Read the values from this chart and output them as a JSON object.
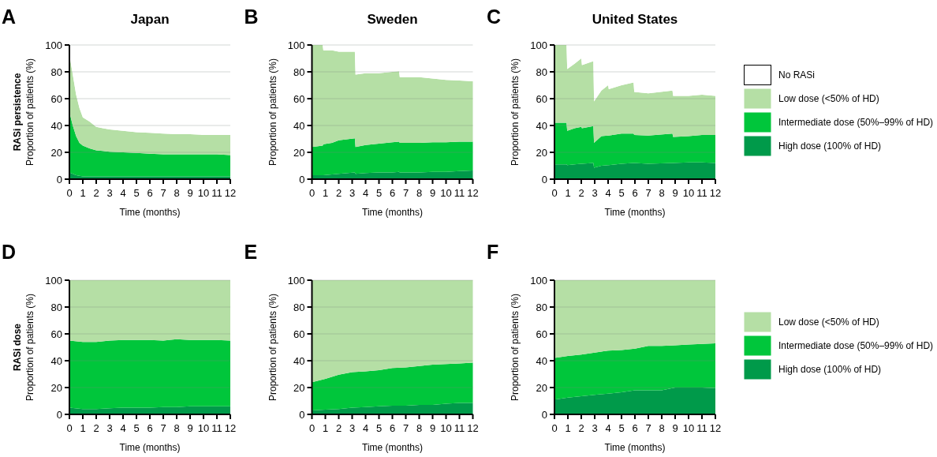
{
  "chart_data": [
    {
      "type": "area",
      "title": "Japan",
      "xlabel": "Time (months)",
      "ylabel": "Proportion of patients (%)",
      "annotations": [
        "A",
        "RASi persistence"
      ],
      "stacked": true,
      "grid": "y",
      "xlim": [
        0,
        12
      ],
      "ylim": [
        0,
        100
      ],
      "xticks": [
        0,
        1,
        2,
        3,
        4,
        5,
        6,
        7,
        8,
        9,
        10,
        11,
        12
      ],
      "yticks": [
        0,
        20,
        40,
        60,
        80,
        100
      ],
      "x": [
        0,
        0.25,
        0.5,
        0.75,
        1,
        1.5,
        2,
        2.5,
        3,
        4,
        5,
        6,
        7,
        8,
        9,
        10,
        11,
        12
      ],
      "series": [
        {
          "color": "#009a4a",
          "values": [
            5,
            4,
            3,
            2.5,
            2,
            2,
            2,
            2,
            2,
            2,
            2,
            2,
            2,
            2,
            2,
            2,
            2,
            2
          ]
        },
        {
          "color": "#00c63b",
          "values": [
            45,
            36,
            29,
            24.5,
            23,
            21,
            19.5,
            19,
            18.5,
            18,
            17.5,
            17,
            16.5,
            16.5,
            16.5,
            16.5,
            16.5,
            16
          ]
        },
        {
          "color": "#b5dfa5",
          "values": [
            43,
            38,
            31,
            26,
            21,
            20,
            17.5,
            17,
            16.5,
            16,
            15.5,
            15.5,
            15.5,
            15,
            15,
            14.5,
            14.5,
            15
          ]
        },
        {
          "color": "#ffffff",
          "values": [
            7,
            22,
            37,
            47,
            54,
            57,
            61,
            62,
            63,
            64,
            65,
            65.5,
            66,
            66.5,
            66.5,
            67,
            67,
            67
          ]
        }
      ]
    },
    {
      "type": "area",
      "title": "Sweden",
      "xlabel": "Time (months)",
      "ylabel": "Proportion of patients (%)",
      "annotations": [
        "B"
      ],
      "stacked": true,
      "grid": "y",
      "xlim": [
        0,
        12
      ],
      "ylim": [
        0,
        100
      ],
      "xticks": [
        0,
        1,
        2,
        3,
        4,
        5,
        6,
        7,
        8,
        9,
        10,
        11,
        12
      ],
      "yticks": [
        0,
        20,
        40,
        60,
        80,
        100
      ],
      "x": [
        0,
        0.8,
        0.85,
        1.5,
        2,
        3.2,
        3.25,
        4,
        5,
        6,
        6.5,
        6.55,
        8,
        9,
        10,
        11,
        12
      ],
      "series": [
        {
          "color": "#009a4a",
          "values": [
            3,
            3,
            3,
            3.5,
            4,
            5,
            4,
            4.5,
            5,
            5,
            5.5,
            5,
            5,
            5.5,
            5.5,
            6,
            6.5
          ]
        },
        {
          "color": "#00c63b",
          "values": [
            21,
            22,
            23,
            23.5,
            25,
            25.5,
            20,
            21,
            21.5,
            22.5,
            22.5,
            22,
            22,
            22,
            22,
            22,
            21.5
          ]
        },
        {
          "color": "#b5dfa5",
          "values": [
            76,
            75,
            70,
            69,
            66,
            64.5,
            54,
            53.5,
            52.5,
            52.5,
            52.5,
            49,
            49,
            47.5,
            46.5,
            45.5,
            45
          ]
        },
        {
          "color": "#ffffff",
          "values": [
            0,
            0,
            4,
            4,
            5,
            5,
            22,
            21,
            21,
            20,
            19.5,
            24,
            24,
            25,
            26,
            26.5,
            27
          ]
        }
      ]
    },
    {
      "type": "area",
      "title": "United States",
      "xlabel": "Time (months)",
      "ylabel": "Proportion of patients (%)",
      "annotations": [
        "C"
      ],
      "stacked": true,
      "grid": "y",
      "legend": "right",
      "xlim": [
        0,
        12
      ],
      "ylim": [
        0,
        100
      ],
      "xticks": [
        0,
        1,
        2,
        3,
        4,
        5,
        6,
        7,
        8,
        9,
        10,
        11,
        12
      ],
      "yticks": [
        0,
        20,
        40,
        60,
        80,
        100
      ],
      "x": [
        0,
        0.9,
        0.95,
        1.5,
        2,
        2.05,
        2.9,
        2.95,
        3.5,
        4,
        4.05,
        5,
        5.9,
        5.95,
        7,
        8.8,
        8.85,
        10,
        11,
        12
      ],
      "series": [
        {
          "name": "High dose (100% of HD)",
          "color": "#009a4a",
          "values": [
            11,
            11,
            10.5,
            11,
            11.5,
            11.5,
            12,
            8.5,
            10,
            10.5,
            10.5,
            11.5,
            12,
            12,
            11.5,
            12,
            12,
            12.5,
            12.5,
            12
          ]
        },
        {
          "name": "Intermediate dose (50%–99% of HD)",
          "color": "#00c63b",
          "values": [
            31,
            31,
            25.5,
            27,
            27.5,
            26.5,
            27.5,
            18.5,
            22,
            22,
            22,
            22.5,
            22,
            21,
            21,
            22,
            19.5,
            19.5,
            20.5,
            21
          ]
        },
        {
          "name": "Low dose (<50% of HD)",
          "color": "#b5dfa5",
          "values": [
            58,
            58,
            46,
            48,
            51,
            47,
            48.5,
            31,
            34,
            37.5,
            34.5,
            36,
            38,
            32,
            31.5,
            32,
            30.5,
            30,
            30,
            29
          ]
        },
        {
          "name": "No RASi",
          "color": "#ffffff",
          "values": [
            0,
            0,
            18,
            14,
            10,
            15,
            12,
            42,
            34,
            30,
            33,
            30,
            28,
            35,
            36,
            34,
            38,
            38,
            37,
            38
          ]
        }
      ]
    },
    {
      "type": "area",
      "xlabel": "Time (months)",
      "ylabel": "Proportion of patients (%)",
      "annotations": [
        "D",
        "RASi dose"
      ],
      "stacked": true,
      "grid": "y",
      "xlim": [
        0,
        12
      ],
      "ylim": [
        0,
        100
      ],
      "xticks": [
        0,
        1,
        2,
        3,
        4,
        5,
        6,
        7,
        8,
        9,
        10,
        11,
        12
      ],
      "yticks": [
        0,
        20,
        40,
        60,
        80,
        100
      ],
      "x": [
        0,
        1,
        2,
        3,
        4,
        5,
        6,
        7,
        8,
        9,
        10,
        11,
        12
      ],
      "series": [
        {
          "color": "#009a4a",
          "values": [
            5,
            4,
            4,
            4.5,
            5,
            5,
            5,
            5.5,
            5.5,
            6,
            6,
            6,
            6
          ]
        },
        {
          "color": "#00c63b",
          "values": [
            50,
            50,
            50,
            50.5,
            50.5,
            50.5,
            50.5,
            49.5,
            50.5,
            49.5,
            49.5,
            49.5,
            49
          ]
        },
        {
          "color": "#b5dfa5",
          "values": [
            45,
            46,
            46,
            45,
            44.5,
            44.5,
            44.5,
            45,
            44,
            44.5,
            44.5,
            44.5,
            45
          ]
        }
      ]
    },
    {
      "type": "area",
      "xlabel": "Time (months)",
      "ylabel": "Proportion of patients (%)",
      "annotations": [
        "E"
      ],
      "stacked": true,
      "grid": "y",
      "xlim": [
        0,
        12
      ],
      "ylim": [
        0,
        100
      ],
      "xticks": [
        0,
        1,
        2,
        3,
        4,
        5,
        6,
        7,
        8,
        9,
        10,
        11,
        12
      ],
      "yticks": [
        0,
        20,
        40,
        60,
        80,
        100
      ],
      "x": [
        0,
        1,
        2,
        3,
        4,
        5,
        6,
        7,
        8,
        9,
        10,
        11,
        12
      ],
      "series": [
        {
          "color": "#009a4a",
          "values": [
            3,
            3.5,
            4,
            5,
            5.5,
            6,
            6.5,
            6.5,
            7,
            7,
            8,
            8.5,
            8.5
          ]
        },
        {
          "color": "#00c63b",
          "values": [
            21,
            23,
            25.5,
            26.5,
            26.5,
            27,
            28,
            28.5,
            29,
            30,
            29.5,
            29.5,
            30
          ]
        },
        {
          "color": "#b5dfa5",
          "values": [
            76,
            73.5,
            70.5,
            68.5,
            68,
            67,
            65.5,
            65,
            64,
            63,
            62.5,
            62,
            61.5
          ]
        }
      ]
    },
    {
      "type": "area",
      "xlabel": "Time (months)",
      "ylabel": "Proportion of patients (%)",
      "annotations": [
        "F"
      ],
      "stacked": true,
      "grid": "y",
      "legend": "right",
      "xlim": [
        0,
        12
      ],
      "ylim": [
        0,
        100
      ],
      "xticks": [
        0,
        1,
        2,
        3,
        4,
        5,
        6,
        7,
        8,
        9,
        10,
        11,
        12
      ],
      "yticks": [
        0,
        20,
        40,
        60,
        80,
        100
      ],
      "x": [
        0,
        1,
        2,
        3,
        4,
        5,
        6,
        7,
        8,
        9,
        10,
        11,
        12
      ],
      "series": [
        {
          "name": "High dose (100% of HD)",
          "color": "#009a4a",
          "values": [
            11,
            12.5,
            13.5,
            14.5,
            15.5,
            16.5,
            18,
            18,
            18,
            20,
            20,
            20,
            19.5
          ]
        },
        {
          "name": "Intermediate dose (50%–99% of HD)",
          "color": "#00c63b",
          "values": [
            31,
            31,
            31,
            31.5,
            32,
            31.5,
            31,
            33,
            33,
            31.5,
            32,
            32.5,
            33.5
          ]
        },
        {
          "name": "Low dose (<50% of HD)",
          "color": "#b5dfa5",
          "values": [
            58,
            56.5,
            55.5,
            54,
            52.5,
            52,
            51,
            49,
            49,
            48.5,
            48,
            47.5,
            47
          ]
        }
      ]
    }
  ]
}
